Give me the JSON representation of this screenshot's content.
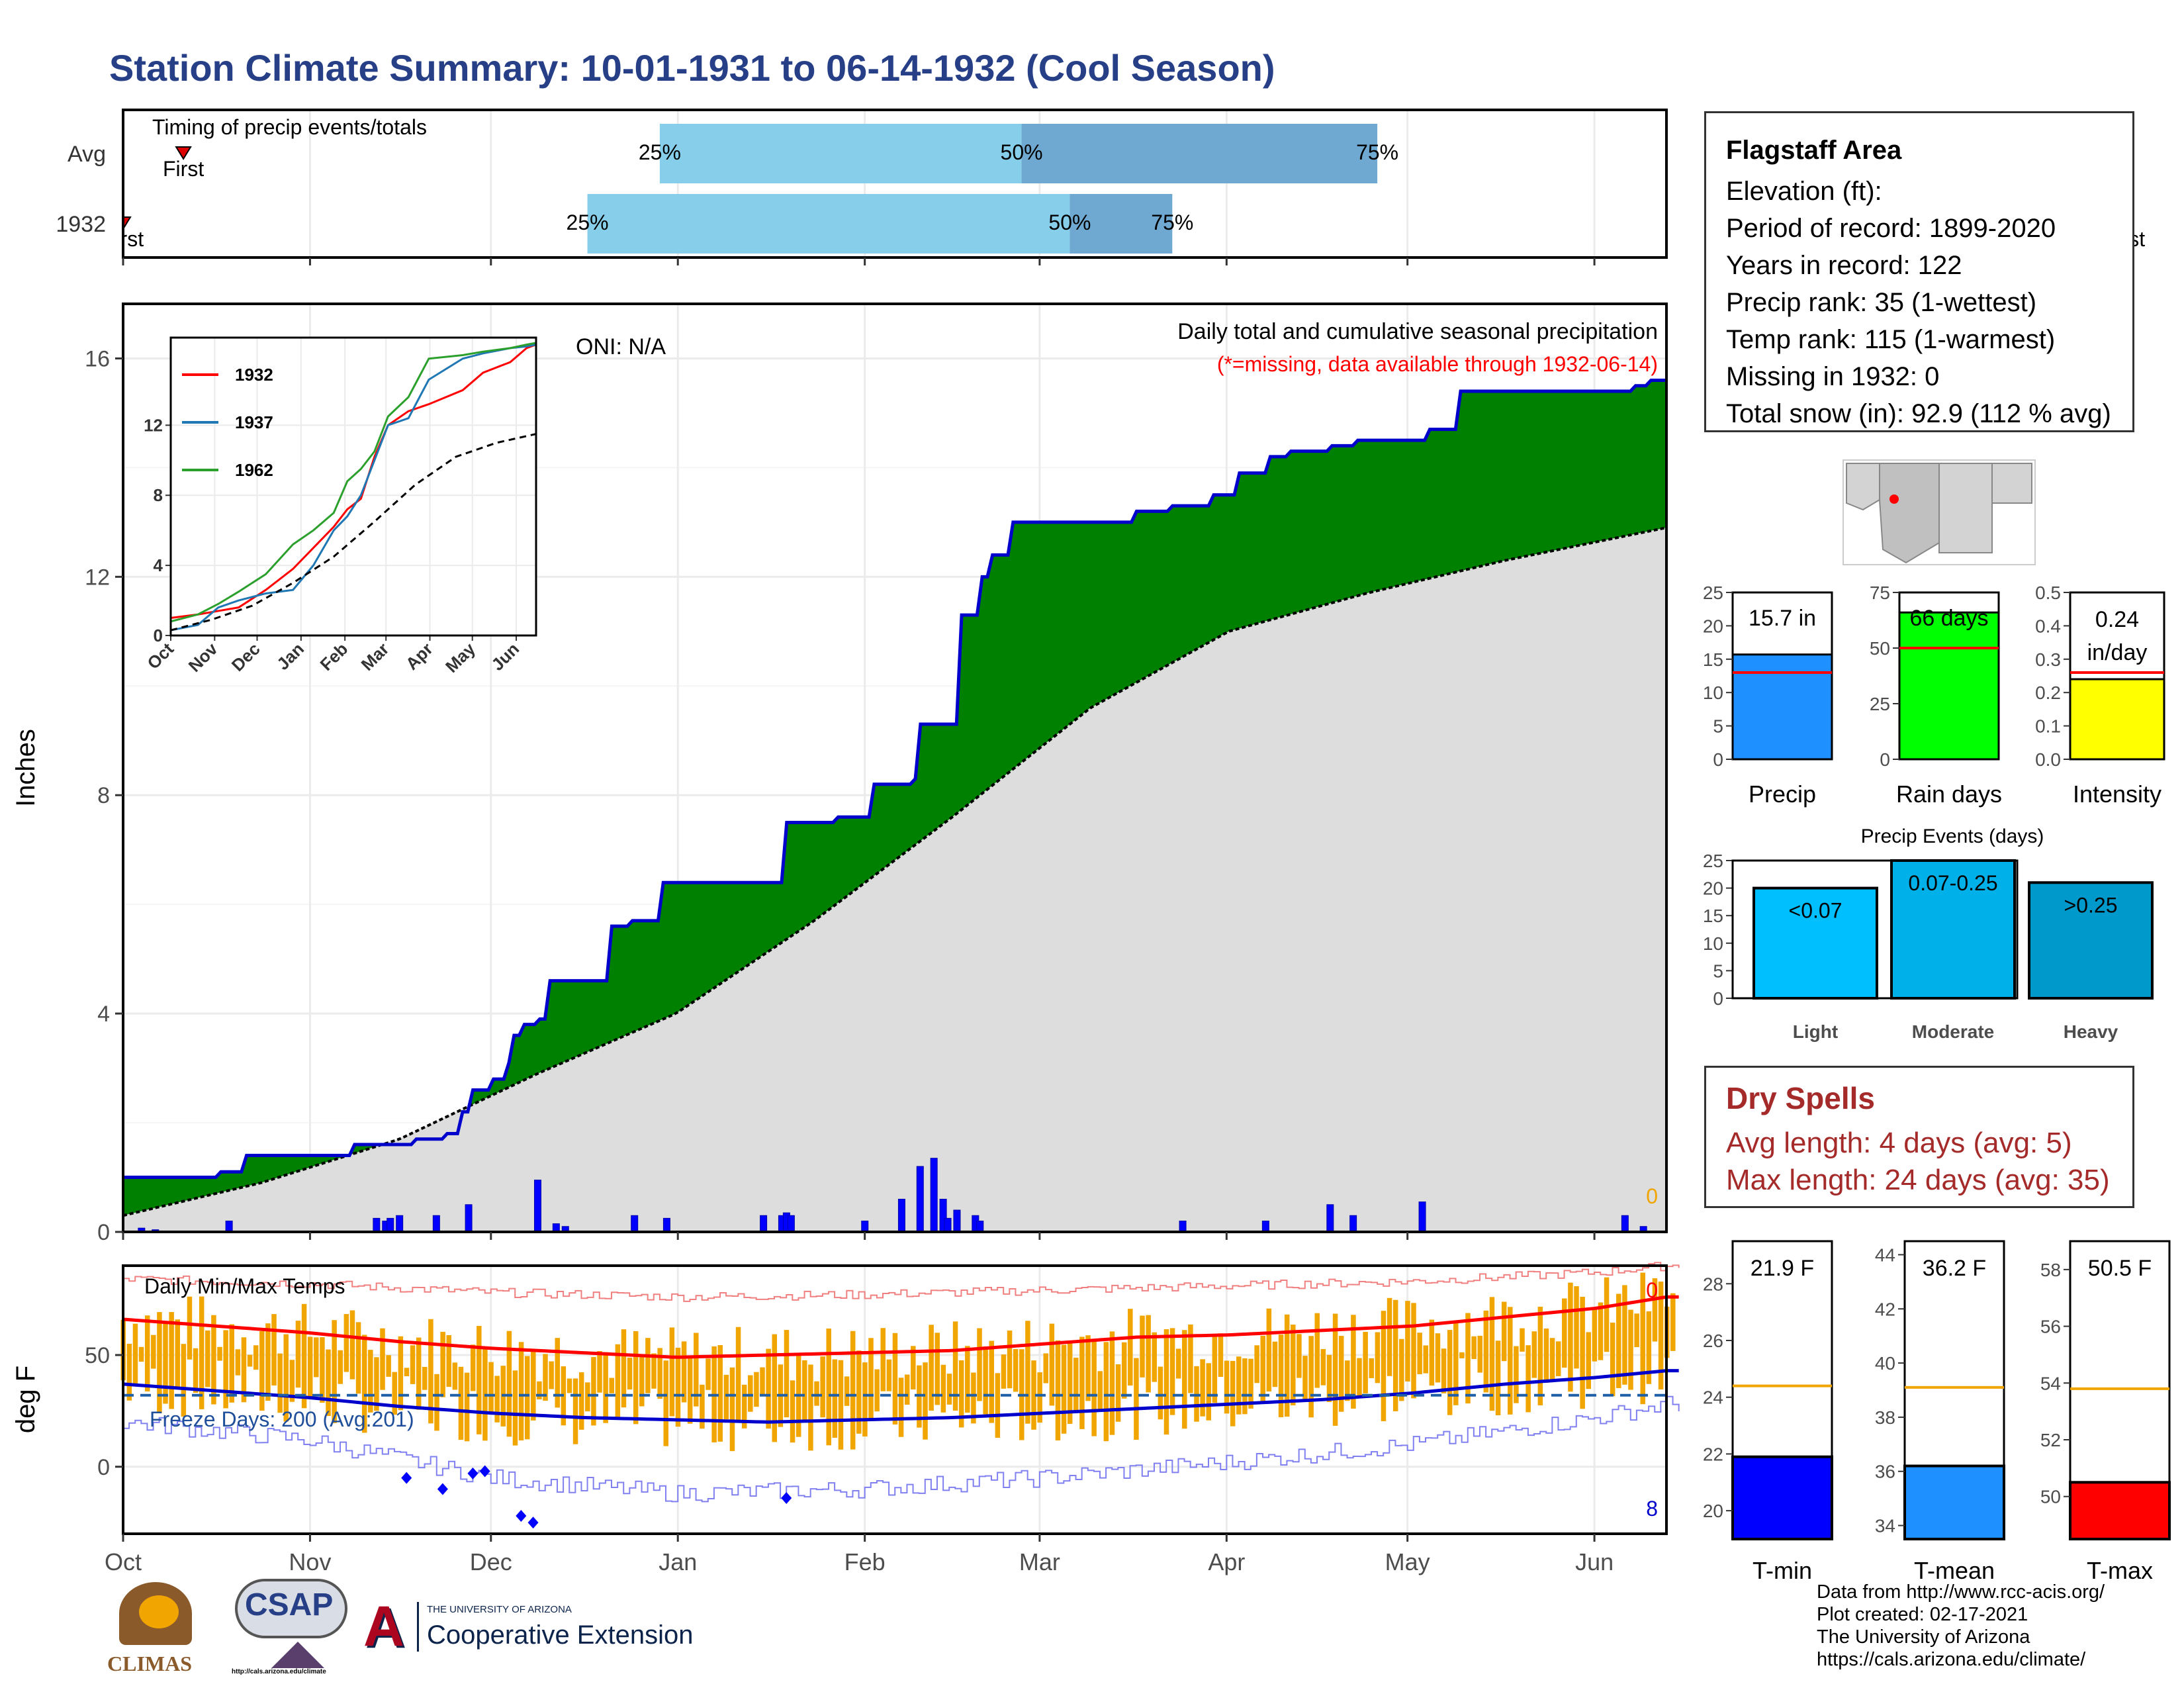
{
  "title": "Station Climate Summary: 10-01-1931 to 06-14-1932 (Cool Season)",
  "colors": {
    "title": "#263f87",
    "green": "#008000",
    "blue_line": "#0000cc",
    "gray_fill": "#dddddd",
    "brown": "#8b5a2b",
    "bar_blue": "#0000ff",
    "bar_light": "#87ceeb",
    "red": "#ff0000",
    "orange": "#f0a500",
    "dry_red": "#a52a2a"
  },
  "timing_panel": {
    "label": "Timing of precip events/totals",
    "rows": [
      {
        "name": "Avg",
        "first_label": "First",
        "last_label": "Last",
        "first_day": 10,
        "q25_day": 89,
        "q50_day": 149,
        "q75_day": 208,
        "last_day": 321
      },
      {
        "name": "1932",
        "first_label": "First",
        "last_label": "Last",
        "first_day": 0,
        "q25_day": 77,
        "q50_day": 157,
        "q75_day": 174,
        "last_day": 332
      }
    ],
    "q25_label": "25%",
    "q50_label": "50%",
    "q75_label": "75%"
  },
  "precip_panel": {
    "ylabel": "Inches",
    "yticks": [
      "0",
      "4",
      "8",
      "12",
      "16"
    ],
    "note": "Daily total and cumulative seasonal precipitation",
    "missing_note": "(*=missing, data available through 1932-06-14)",
    "oni": "ONI: N/A",
    "missing_count": "0",
    "ymax": 17
  },
  "chart_data": [
    {
      "type": "area",
      "title": "Daily total and cumulative seasonal precipitation",
      "ylabel": "Inches",
      "ylim": [
        0,
        17
      ],
      "series": [
        {
          "name": "1932 cumulative",
          "x": [
            0,
            21,
            26,
            35,
            50,
            63,
            70,
            73,
            75,
            80,
            83,
            84,
            86,
            90,
            92,
            105,
            110,
            111,
            117,
            125,
            143,
            155,
            162,
            169,
            171,
            173,
            182,
            186,
            188,
            193,
            213,
            219,
            227,
            231,
            232,
            236,
            242,
            248,
            253,
            262,
            268,
            283,
            290,
            308,
            320,
            328,
            331,
            335
          ],
          "y": [
            1.0,
            1.1,
            1.4,
            1.4,
            1.6,
            1.7,
            1.8,
            2.2,
            2.6,
            2.8,
            3.1,
            3.6,
            3.8,
            3.9,
            4.6,
            5.6,
            5.7,
            5.7,
            6.4,
            6.4,
            7.5,
            7.6,
            8.2,
            8.2,
            8.3,
            9.3,
            11.3,
            12.0,
            12.4,
            13.0,
            13.0,
            13.2,
            13.3,
            13.3,
            13.3,
            13.5,
            13.9,
            14.2,
            14.3,
            14.4,
            14.5,
            14.7,
            15.4,
            15.4,
            15.4,
            15.5,
            15.6,
            15.6
          ]
        },
        {
          "name": "Average cumulative",
          "x": [
            0,
            30,
            60,
            90,
            120,
            150,
            180,
            210,
            240,
            270,
            300,
            335
          ],
          "y": [
            0.3,
            0.9,
            1.7,
            2.9,
            4.0,
            5.7,
            7.6,
            9.6,
            11.0,
            11.7,
            12.3,
            12.9
          ]
        }
      ],
      "daily_bars": {
        "x": [
          4,
          7,
          23,
          55,
          57,
          58,
          60,
          68,
          75,
          90,
          94,
          96,
          111,
          118,
          139,
          143,
          144,
          145,
          161,
          169,
          173,
          176,
          178,
          179,
          181,
          185,
          186,
          230,
          248,
          262,
          267,
          282,
          326,
          330
        ],
        "y": [
          0.07,
          0.04,
          0.2,
          0.25,
          0.2,
          0.25,
          0.3,
          0.3,
          0.5,
          0.95,
          0.15,
          0.1,
          0.3,
          0.25,
          0.3,
          0.3,
          0.35,
          0.3,
          0.2,
          0.6,
          1.2,
          1.35,
          0.6,
          0.25,
          0.4,
          0.3,
          0.2,
          0.2,
          0.2,
          0.5,
          0.3,
          0.55,
          0.3,
          0.1
        ]
      }
    },
    {
      "type": "line",
      "title": "",
      "categories": [
        "Oct",
        "Nov",
        "Dec",
        "Jan",
        "Feb",
        "Mar",
        "Apr",
        "May",
        "Jun"
      ],
      "yticks": [
        "0",
        "4",
        "8",
        "12"
      ],
      "ylim": [
        0,
        17
      ],
      "series": [
        {
          "name": "1932",
          "color": "#ff0000",
          "x": [
            0,
            20,
            35,
            50,
            70,
            90,
            105,
            120,
            130,
            140,
            150,
            160,
            175,
            190,
            215,
            230,
            250,
            262,
            269
          ],
          "y": [
            1.0,
            1.2,
            1.4,
            1.6,
            2.6,
            3.8,
            5.0,
            6.2,
            7.2,
            7.8,
            10.2,
            12.0,
            12.8,
            13.2,
            14.0,
            15.0,
            15.6,
            16.4,
            16.6
          ]
        },
        {
          "name": "1937",
          "color": "#1f77b4",
          "x": [
            0,
            20,
            35,
            50,
            70,
            90,
            105,
            120,
            130,
            140,
            150,
            160,
            175,
            190,
            215,
            230,
            250,
            262,
            269
          ],
          "y": [
            0.3,
            0.6,
            1.6,
            2.0,
            2.4,
            2.6,
            4.0,
            6.0,
            6.8,
            8.0,
            10.0,
            12.0,
            12.4,
            14.6,
            15.8,
            16.1,
            16.4,
            16.5,
            16.6
          ]
        },
        {
          "name": "1962",
          "color": "#2ca02c",
          "x": [
            0,
            20,
            35,
            50,
            70,
            90,
            105,
            120,
            130,
            140,
            150,
            160,
            175,
            190,
            215,
            230,
            250,
            262,
            269
          ],
          "y": [
            0.8,
            1.2,
            1.8,
            2.5,
            3.5,
            5.2,
            6.0,
            7.0,
            8.8,
            9.5,
            10.5,
            12.5,
            13.6,
            15.8,
            16.0,
            16.2,
            16.4,
            16.6,
            16.7
          ]
        },
        {
          "name": "Average",
          "color": "#000000",
          "x": [
            0,
            30,
            60,
            90,
            120,
            150,
            180,
            210,
            240,
            269
          ],
          "y": [
            0.3,
            0.9,
            1.7,
            3.0,
            4.5,
            6.5,
            8.6,
            10.2,
            11.0,
            11.5
          ]
        }
      ]
    },
    {
      "type": "bar",
      "title": "",
      "categories": [
        "Precip",
        "Rain days",
        "Intensity"
      ],
      "values": [
        15.7,
        66,
        0.24
      ],
      "labels": [
        "15.7 in",
        "66 days",
        "0.24 in/day"
      ],
      "averages": [
        13.0,
        50,
        0.26
      ],
      "ylims": [
        [
          0,
          25
        ],
        [
          0,
          75
        ],
        [
          0,
          0.5
        ]
      ],
      "yticks": [
        [
          "0",
          "5",
          "10",
          "15",
          "20",
          "25"
        ],
        [
          "0",
          "25",
          "50",
          "75"
        ],
        [
          "0.0",
          "0.1",
          "0.2",
          "0.3",
          "0.4",
          "0.5"
        ]
      ]
    },
    {
      "type": "bar",
      "title": "Precip Events (days)",
      "categories": [
        "Light",
        "Moderate",
        "Heavy"
      ],
      "labels": [
        "<0.07",
        "0.07-0.25",
        ">0.25"
      ],
      "values": [
        20,
        25,
        21
      ],
      "ylim": [
        0,
        25
      ],
      "yticks": [
        "0",
        "5",
        "10",
        "15",
        "20",
        "25"
      ]
    },
    {
      "type": "line",
      "title": "Daily Min/Max Temps",
      "ylabel": "deg F",
      "yticks": [
        "0",
        "50"
      ],
      "ylim": [
        -30,
        90
      ],
      "freeze_note": "Freeze Days: 200 (Avg:201)",
      "max_missing": "0",
      "min_missing": "8",
      "series": [
        {
          "name": "Avg max",
          "x": [
            0,
            20,
            40,
            60,
            80,
            100,
            120,
            140,
            160,
            180,
            200,
            220,
            240,
            260,
            280,
            300,
            320,
            335
          ],
          "y": [
            66,
            63,
            60,
            56,
            53,
            51,
            49,
            50,
            51,
            52,
            55,
            58,
            59,
            61,
            63,
            67,
            71,
            76
          ]
        },
        {
          "name": "Avg min",
          "x": [
            0,
            20,
            40,
            60,
            80,
            100,
            120,
            140,
            160,
            180,
            200,
            220,
            240,
            260,
            280,
            300,
            320,
            335
          ],
          "y": [
            37,
            34,
            31,
            27,
            24,
            22,
            21,
            20,
            21,
            22,
            24,
            26,
            28,
            30,
            33,
            37,
            40,
            43
          ]
        },
        {
          "name": "Record max",
          "x": [
            0,
            40,
            80,
            120,
            160,
            200,
            240,
            280,
            320,
            335
          ],
          "y": [
            84,
            82,
            78,
            76,
            77,
            79,
            81,
            83,
            87,
            90
          ]
        },
        {
          "name": "Record min",
          "x": [
            0,
            40,
            80,
            120,
            160,
            200,
            240,
            280,
            320,
            335
          ],
          "y": [
            20,
            12,
            -5,
            -12,
            -10,
            -5,
            2,
            10,
            22,
            28
          ]
        }
      ],
      "freeze_line": 32
    },
    {
      "type": "bar",
      "title": "",
      "categories": [
        "T-min",
        "T-mean",
        "T-max"
      ],
      "values": [
        21.9,
        36.2,
        50.5
      ],
      "labels": [
        "21.9 F",
        "36.2 F",
        "50.5 F"
      ],
      "averages": [
        24.4,
        39.1,
        53.8
      ],
      "ylims": [
        [
          19,
          29.5
        ],
        [
          33.5,
          44.5
        ],
        [
          48.5,
          59
        ]
      ],
      "yticks": [
        [
          "20",
          "22",
          "24",
          "26",
          "28"
        ],
        [
          "34",
          "36",
          "38",
          "40",
          "42",
          "44"
        ],
        [
          "50",
          "52",
          "54",
          "56",
          "58"
        ]
      ]
    }
  ],
  "months": [
    "Oct",
    "Nov",
    "Dec",
    "Jan",
    "Feb",
    "Mar",
    "Apr",
    "May",
    "Jun"
  ],
  "month_days": [
    0,
    31,
    61,
    92,
    123,
    152,
    183,
    213,
    244
  ],
  "station": {
    "name": "Flagstaff Area",
    "elevation": "Elevation (ft):",
    "period": "Period of record: 1899-2020",
    "years": "Years in record: 122",
    "precip_rank": "Precip rank: 35 (1-wettest)",
    "temp_rank": "Temp rank: 115 (1-warmest)",
    "missing": "Missing in 1932: 0",
    "snow": "Total snow (in): 92.9 (112 % avg)"
  },
  "dry_spells": {
    "header": "Dry Spells",
    "avg": "Avg length: 4 days (avg: 5)",
    "max": "Max length: 24 days (avg: 35)"
  },
  "credits": {
    "line1": "Data from http://www.rcc-acis.org/",
    "line2": "Plot created: 02-17-2021",
    "line3": "The University of Arizona",
    "line4": "https://cals.arizona.edu/climate/"
  },
  "logos": {
    "climas": "CLIMAS",
    "csap": "CSAP",
    "csap_url": "http://cals.arizona.edu/climate",
    "ua_small": "THE UNIVERSITY OF ARIZONA",
    "ua_big": "Cooperative Extension"
  }
}
